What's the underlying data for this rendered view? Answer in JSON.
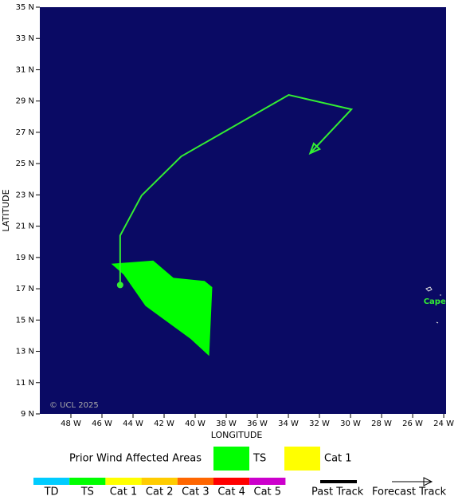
{
  "chart_data": {
    "type": "map",
    "xlabel": "LONGITUDE",
    "ylabel": "LATITUDE",
    "background": "#0a0a64",
    "xlim": [
      -50,
      -23.85
    ],
    "ylim": [
      9,
      35
    ],
    "xticks": [
      {
        "value": -48,
        "label": "48 W"
      },
      {
        "value": -46,
        "label": "46 W"
      },
      {
        "value": -44,
        "label": "44 W"
      },
      {
        "value": -42,
        "label": "42 W"
      },
      {
        "value": -40,
        "label": "40 W"
      },
      {
        "value": -38,
        "label": "38 W"
      },
      {
        "value": -36,
        "label": "36 W"
      },
      {
        "value": -34,
        "label": "34 W"
      },
      {
        "value": -32,
        "label": "32 W"
      },
      {
        "value": -30,
        "label": "30 W"
      },
      {
        "value": -28,
        "label": "28 W"
      },
      {
        "value": -26,
        "label": "26 W"
      },
      {
        "value": -24,
        "label": "24 W"
      }
    ],
    "yticks": [
      {
        "value": 9,
        "label": "9 N"
      },
      {
        "value": 11,
        "label": "11 N"
      },
      {
        "value": 13,
        "label": "13 N"
      },
      {
        "value": 15,
        "label": "15 N"
      },
      {
        "value": 17,
        "label": "17 N"
      },
      {
        "value": 19,
        "label": "19 N"
      },
      {
        "value": 21,
        "label": "21 N"
      },
      {
        "value": 23,
        "label": "23 N"
      },
      {
        "value": 25,
        "label": "25 N"
      },
      {
        "value": 27,
        "label": "27 N"
      },
      {
        "value": 29,
        "label": "29 N"
      },
      {
        "value": 31,
        "label": "31 N"
      },
      {
        "value": 33,
        "label": "33 N"
      },
      {
        "value": 35,
        "label": "35 N"
      }
    ],
    "wind_area": {
      "color": "#00ff00",
      "lon": [
        -45.4,
        -42.7,
        -41.4,
        -39.4,
        -38.9,
        -39.1,
        -40.3,
        -43.2,
        -44.6
      ],
      "lat": [
        18.6,
        18.8,
        17.7,
        17.5,
        17.1,
        12.7,
        13.8,
        15.9,
        17.9
      ]
    },
    "track": {
      "color": "#33ee33",
      "lon": [
        -44.83,
        -44.83,
        -43.45,
        -40.9,
        -33.98,
        -29.94,
        -32.6
      ],
      "lat": [
        17.24,
        20.4,
        22.96,
        25.46,
        29.39,
        28.47,
        25.66
      ]
    },
    "places": [
      {
        "name": "Cape Verde",
        "lon": -25.3,
        "lat": 16.2,
        "color": "#33ee33"
      }
    ],
    "copyright": "© UCL 2025",
    "legend": {
      "title": "Prior Wind Affected Areas",
      "items": [
        {
          "name": "TS",
          "color": "#00ff00"
        },
        {
          "name": "Cat 1",
          "color": "#ffff00"
        }
      ]
    },
    "scale": [
      {
        "name": "TD",
        "color": "#00ccff"
      },
      {
        "name": "TS",
        "color": "#00ff00"
      },
      {
        "name": "Cat 1",
        "color": "#ffff00"
      },
      {
        "name": "Cat 2",
        "color": "#ffcc00"
      },
      {
        "name": "Cat 3",
        "color": "#ff6600"
      },
      {
        "name": "Cat 4",
        "color": "#ff0000"
      },
      {
        "name": "Cat 5",
        "color": "#cc00cc"
      }
    ],
    "track_legend": {
      "past": "Past Track",
      "forecast": "Forecast Track"
    }
  }
}
